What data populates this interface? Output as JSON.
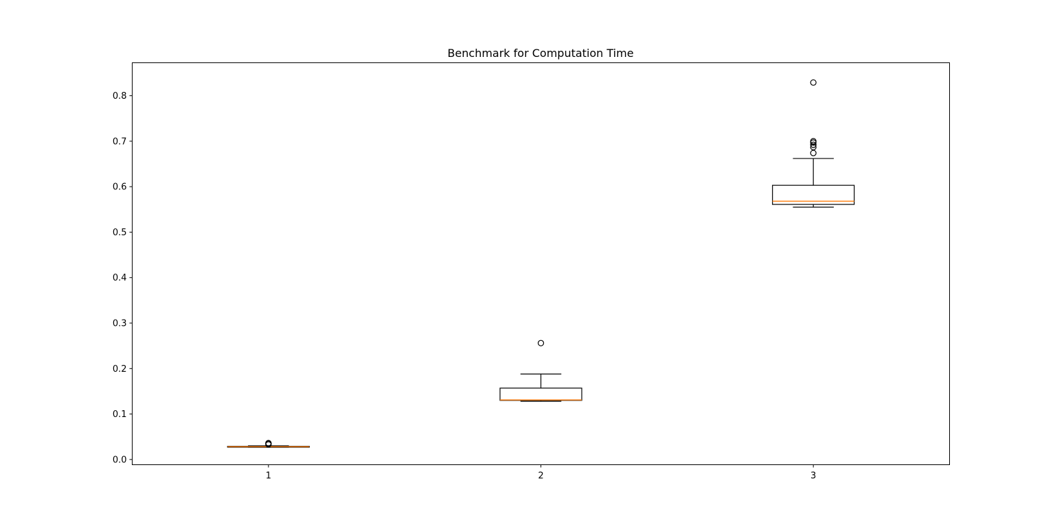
{
  "chart_data": {
    "type": "boxplot",
    "title": "Benchmark for Computation Time",
    "xlabel": "",
    "ylabel": "",
    "categories": [
      "1",
      "2",
      "3"
    ],
    "ylim": [
      -0.0115,
      0.8725
    ],
    "yticks": [
      0.0,
      0.1,
      0.2,
      0.3,
      0.4,
      0.5,
      0.6,
      0.7,
      0.8
    ],
    "ytick_labels": [
      "0.0",
      "0.1",
      "0.2",
      "0.3",
      "0.4",
      "0.5",
      "0.6",
      "0.7",
      "0.8"
    ],
    "grid": false,
    "legend": "none",
    "colors": {
      "box": "#000000",
      "median": "#ff7f0e",
      "flier": "#000000"
    },
    "boxes": [
      {
        "label": "1",
        "whisker_low": 0.027,
        "q1": 0.027,
        "median": 0.028,
        "q3": 0.029,
        "whisker_high": 0.03,
        "fliers": [
          0.033,
          0.035,
          0.036
        ]
      },
      {
        "label": "2",
        "whisker_low": 0.128,
        "q1": 0.13,
        "median": 0.131,
        "q3": 0.157,
        "whisker_high": 0.188,
        "fliers": [
          0.256
        ]
      },
      {
        "label": "3",
        "whisker_low": 0.555,
        "q1": 0.561,
        "median": 0.568,
        "q3": 0.603,
        "whisker_high": 0.662,
        "fliers": [
          0.674,
          0.687,
          0.692,
          0.697,
          0.7,
          0.829
        ]
      }
    ]
  }
}
